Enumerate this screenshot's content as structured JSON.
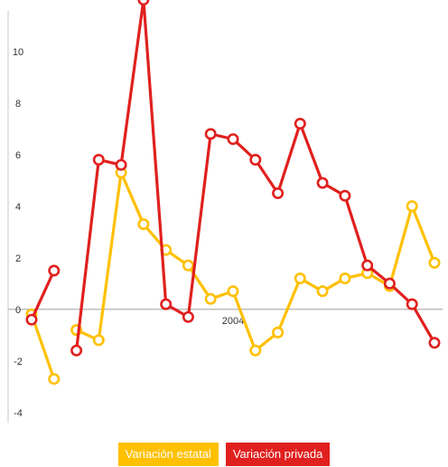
{
  "chart_data": {
    "type": "line",
    "title": "",
    "xlabel": "",
    "ylabel": "",
    "ylim": [
      -4.5,
      11.5
    ],
    "y_ticks": [
      -4,
      -2,
      0,
      2,
      4,
      6,
      8,
      10
    ],
    "x_tick_labels": [
      {
        "index": 9,
        "label": "2004"
      }
    ],
    "grid": false,
    "legend_position": "bottom",
    "series": [
      {
        "name": "Variación estatal",
        "color": "#FFC000",
        "segments": [
          [
            [
              0,
              -0.2
            ],
            [
              1,
              -2.7
            ]
          ],
          [
            [
              2,
              -0.8
            ],
            [
              3,
              -1.2
            ],
            [
              4,
              5.3
            ],
            [
              5,
              3.3
            ],
            [
              6,
              2.3
            ],
            [
              7,
              1.7
            ],
            [
              8,
              0.4
            ],
            [
              9,
              0.7
            ],
            [
              10,
              -1.6
            ],
            [
              11,
              -0.9
            ],
            [
              12,
              1.2
            ],
            [
              13,
              0.7
            ],
            [
              14,
              1.2
            ],
            [
              15,
              1.4
            ],
            [
              16,
              0.9
            ],
            [
              17,
              4.0
            ],
            [
              18,
              1.8
            ]
          ]
        ]
      },
      {
        "name": "Variación privada",
        "color": "#E0201E",
        "segments": [
          [
            [
              0,
              -0.4
            ],
            [
              1,
              1.5
            ]
          ],
          [
            [
              2,
              -1.6
            ],
            [
              3,
              5.8
            ],
            [
              4,
              5.6
            ],
            [
              5,
              12.0
            ],
            [
              6,
              0.2
            ],
            [
              7,
              -0.3
            ],
            [
              8,
              6.8
            ],
            [
              9,
              6.6
            ],
            [
              10,
              5.8
            ],
            [
              11,
              4.5
            ],
            [
              12,
              7.2
            ],
            [
              13,
              4.9
            ],
            [
              14,
              4.4
            ],
            [
              15,
              1.7
            ],
            [
              16,
              1.0
            ],
            [
              17,
              0.2
            ],
            [
              18,
              -1.3
            ]
          ]
        ]
      }
    ]
  }
}
